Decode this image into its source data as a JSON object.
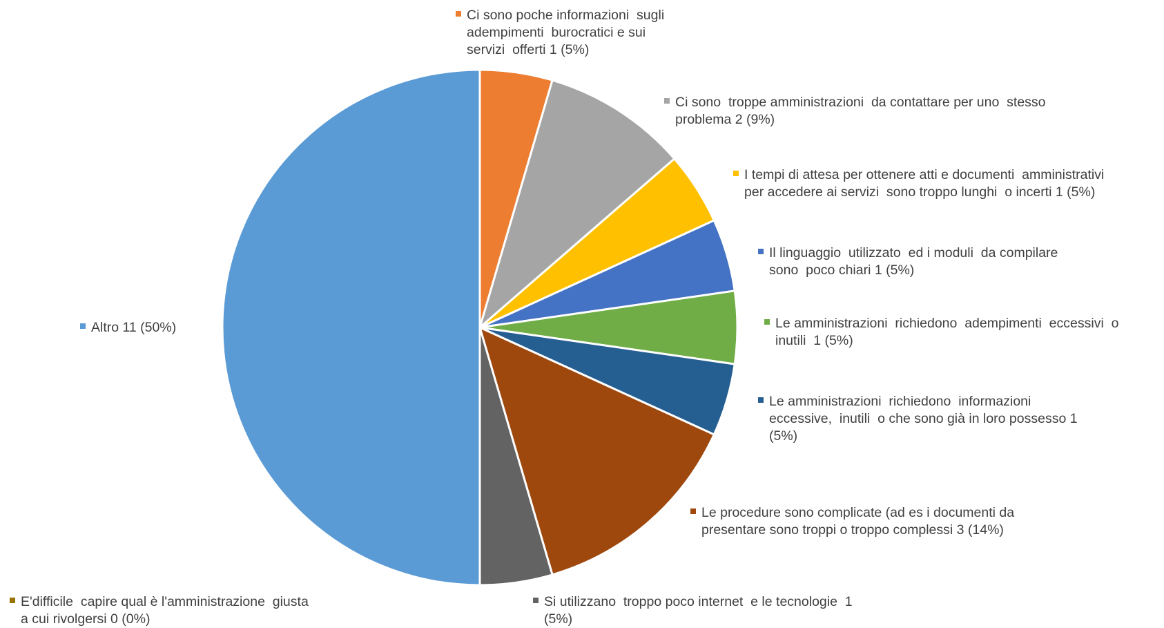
{
  "chart_data": {
    "type": "pie",
    "slices": [
      {
        "label_lines": [
          "Ci sono poche informazioni  sugli",
          "adempimenti  burocratici e sui",
          "servizi  offerti 1 (5%)"
        ],
        "value": 1,
        "percent": "5%",
        "color": "#ED7D31"
      },
      {
        "label_lines": [
          "Ci sono  troppe amministrazioni  da contattare per uno  stesso",
          "problema 2 (9%)"
        ],
        "value": 2,
        "percent": "9%",
        "color": "#A5A5A5"
      },
      {
        "label_lines": [
          "I tempi di attesa per ottenere atti e documenti  amministrativi",
          "per accedere ai servizi  sono troppo lunghi  o incerti 1 (5%)"
        ],
        "value": 1,
        "percent": "5%",
        "color": "#FFC000"
      },
      {
        "label_lines": [
          "Il linguaggio  utilizzato  ed i moduli  da compilare",
          "sono  poco chiari 1 (5%)"
        ],
        "value": 1,
        "percent": "5%",
        "color": "#4472C4"
      },
      {
        "label_lines": [
          "Le amministrazioni  richiedono  adempimenti  eccessivi  o",
          "inutili  1 (5%)"
        ],
        "value": 1,
        "percent": "5%",
        "color": "#70AD47"
      },
      {
        "label_lines": [
          "Le amministrazioni  richiedono  informazioni",
          "eccessive,  inutili  o che sono già in loro possesso 1",
          "(5%)"
        ],
        "value": 1,
        "percent": "5%",
        "color": "#255E91"
      },
      {
        "label_lines": [
          "Le procedure sono complicate (ad es i documenti da",
          "presentare sono troppi o troppo complessi 3 (14%)"
        ],
        "value": 3,
        "percent": "14%",
        "color": "#9E480E"
      },
      {
        "label_lines": [
          "Si utilizzano  troppo poco internet  e le tecnologie  1",
          "(5%)"
        ],
        "value": 1,
        "percent": "5%",
        "color": "#636363"
      },
      {
        "label_lines": [
          "E'difficile  capire qual è l'amministrazione  giusta",
          "a cui rivolgersi 0 (0%)"
        ],
        "value": 0,
        "percent": "0%",
        "color": "#997300"
      },
      {
        "label_lines": [
          "Altro 11 (50%)"
        ],
        "value": 11,
        "percent": "50%",
        "color": "#5B9BD5"
      }
    ],
    "title": "",
    "legend": "labels-outside"
  }
}
